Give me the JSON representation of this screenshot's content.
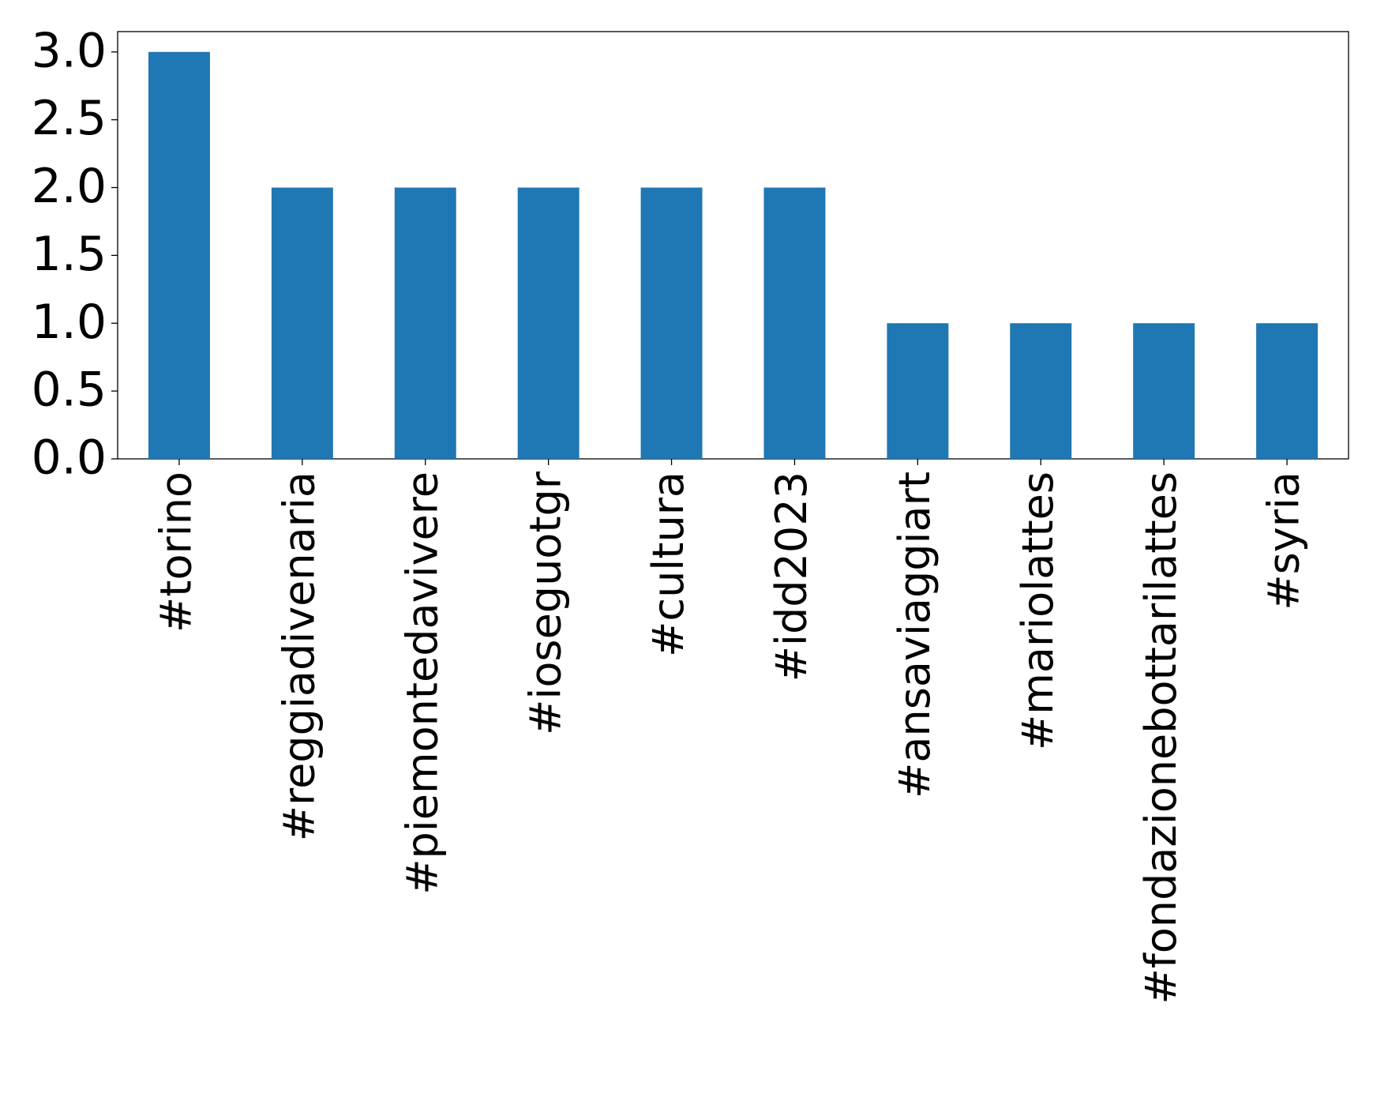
{
  "chart_data": {
    "type": "bar",
    "categories": [
      "#torino",
      "#reggiadivenaria",
      "#piemontedavivere",
      "#ioseguotgr",
      "#cultura",
      "#idd2023",
      "#ansaviaggiart",
      "#mariolattes",
      "#fondazionebottarilattes",
      "#syria"
    ],
    "values": [
      3,
      2,
      2,
      2,
      2,
      2,
      1,
      1,
      1,
      1
    ],
    "color": "#1f77b4",
    "ylim": [
      0,
      3.15
    ],
    "yticks": [
      {
        "value": 0,
        "label": "0.0"
      },
      {
        "value": 0.5,
        "label": "0.5"
      },
      {
        "value": 1,
        "label": "1.0"
      },
      {
        "value": 1.5,
        "label": "1.5"
      },
      {
        "value": 2,
        "label": "2.0"
      },
      {
        "value": 2.5,
        "label": "2.5"
      },
      {
        "value": 3,
        "label": "3.0"
      }
    ],
    "grid": false
  }
}
